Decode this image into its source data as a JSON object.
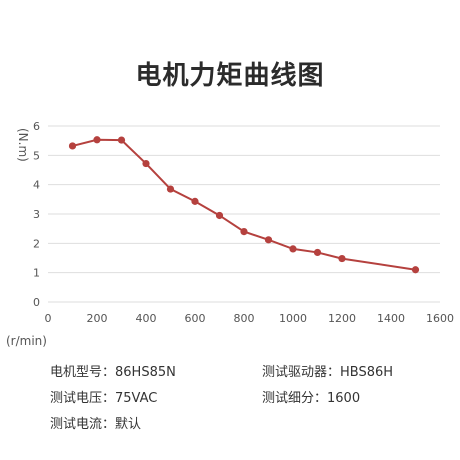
{
  "title": "电机力矩曲线图",
  "chart_data": {
    "type": "line",
    "ylabel": "(N.m)",
    "xlabel": "(r/min)",
    "xlim": [
      0,
      1600
    ],
    "ylim": [
      0,
      6
    ],
    "xticks": [
      0,
      200,
      400,
      600,
      800,
      1000,
      1200,
      1400,
      1600
    ],
    "yticks": [
      0,
      1,
      2,
      3,
      4,
      5,
      6
    ],
    "series": [
      {
        "color": "#b5413e",
        "x": [
          100,
          200,
          300,
          400,
          500,
          600,
          700,
          800,
          900,
          1000,
          1100,
          1200,
          1500
        ],
        "y": [
          5.32,
          5.53,
          5.52,
          4.72,
          3.85,
          3.43,
          2.95,
          2.4,
          2.12,
          1.81,
          1.69,
          1.48,
          1.1
        ]
      }
    ]
  },
  "specs": {
    "motor_label": "电机型号：",
    "motor_value": "86HS85N",
    "driver_label": "测试驱动器：",
    "driver_value": "HBS86H",
    "voltage_label": "测试电压：",
    "voltage_value": "75VAC",
    "subdiv_label": "测试细分：",
    "subdiv_value": "1600",
    "current_label": "测试电流：",
    "current_value": "默认"
  }
}
